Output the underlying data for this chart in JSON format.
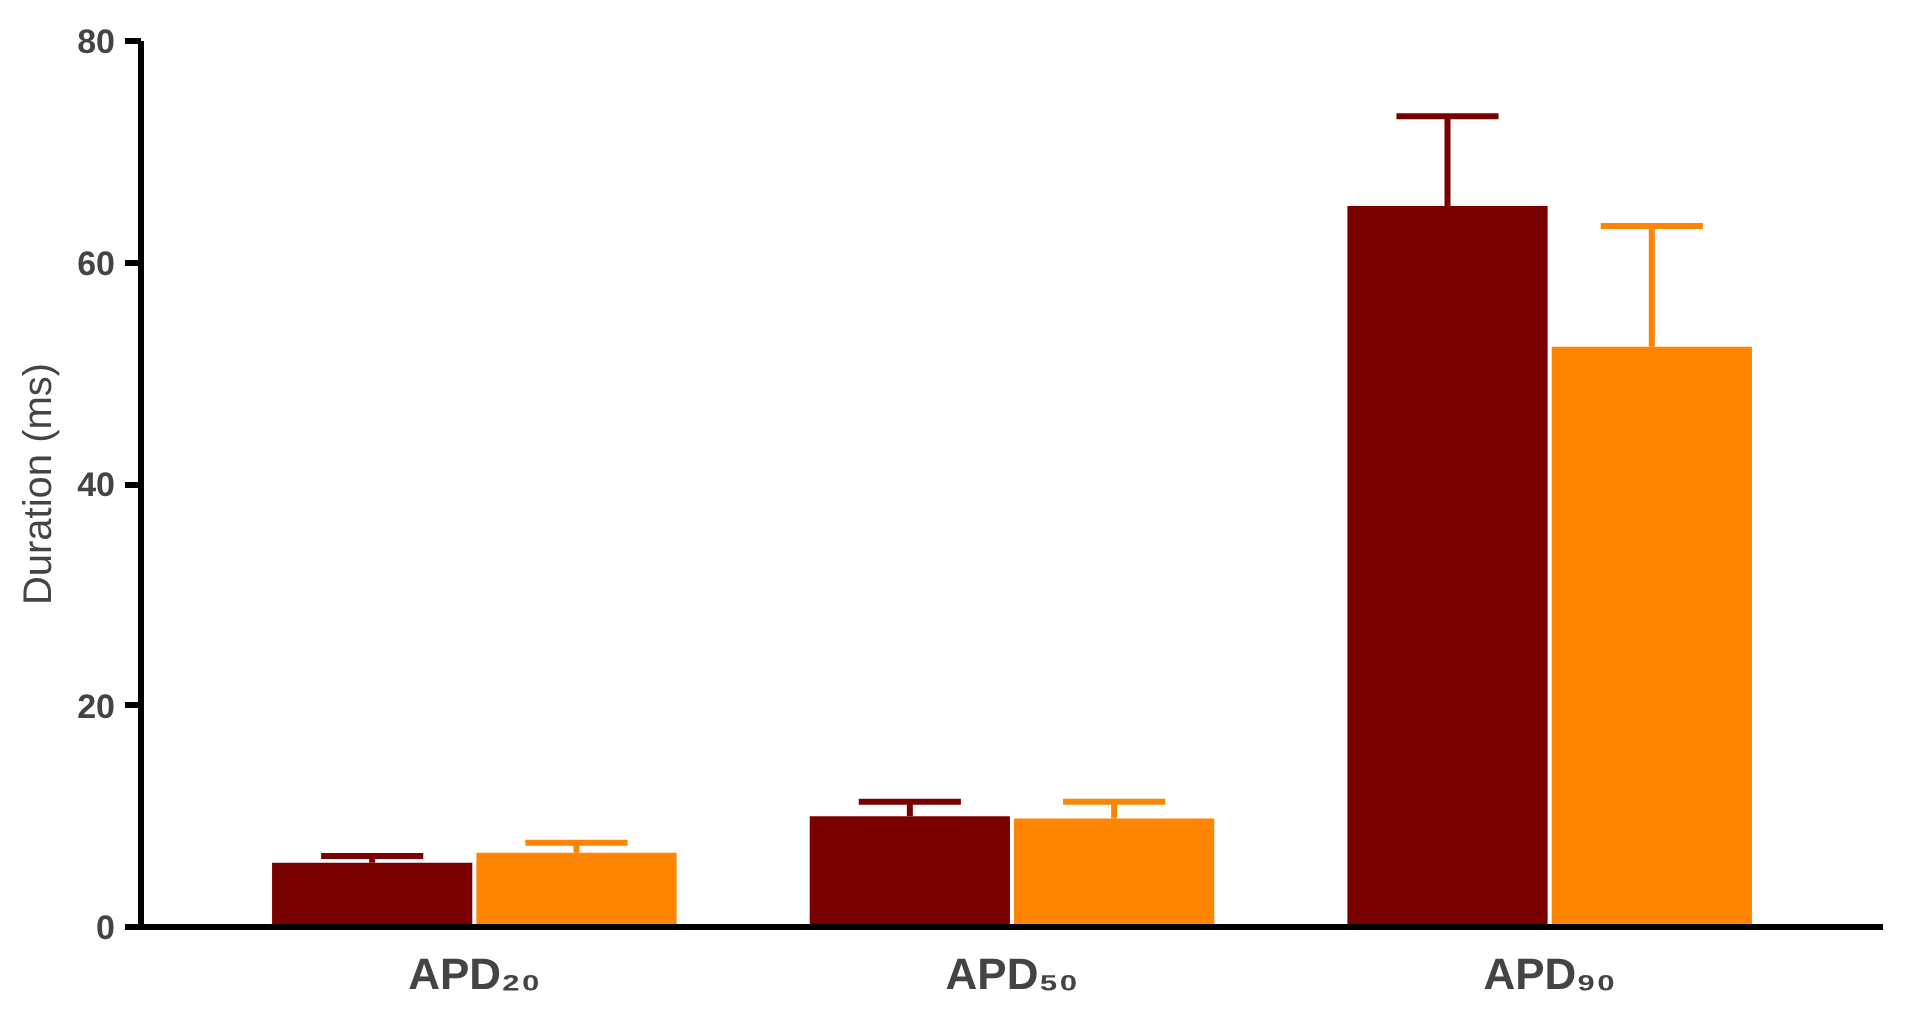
{
  "chart_data": {
    "type": "bar",
    "ylabel": "Duration (ms)",
    "categories": [
      "APD₂₀",
      "APD₅₀",
      "APD₉₀"
    ],
    "series": [
      {
        "color": "#7a0000",
        "values": [
          5.8,
          10.0,
          65.1
        ],
        "errors": [
          [
            5.8,
            6.4
          ],
          [
            10.0,
            11.3
          ],
          [
            65.1,
            73.2
          ]
        ]
      },
      {
        "color": "#ff8400",
        "values": [
          6.7,
          9.8,
          52.4
        ],
        "errors": [
          [
            6.7,
            7.6
          ],
          [
            9.8,
            11.3
          ],
          [
            52.4,
            63.3
          ]
        ]
      }
    ],
    "ylim": [
      0,
      80
    ],
    "yticks": [
      0,
      20,
      40,
      60,
      80
    ],
    "grid": false
  }
}
